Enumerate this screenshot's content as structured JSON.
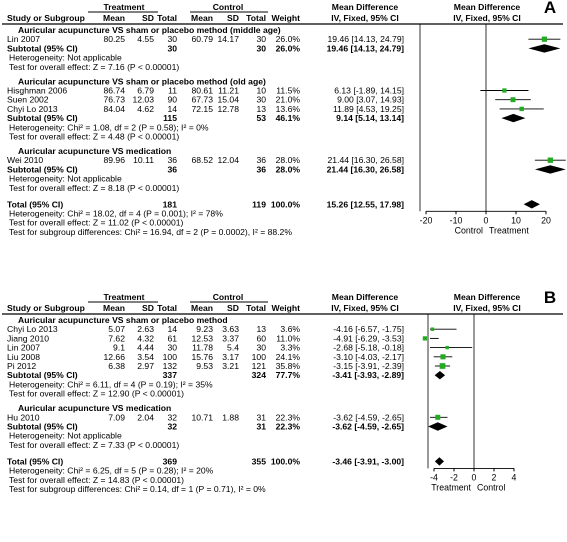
{
  "chart_data": [
    {
      "type": "forest",
      "panel_label": "A",
      "headers": {
        "study": "Study or Subgroup",
        "group1": "Treatment",
        "group2": "Control",
        "mean": "Mean",
        "sd": "SD",
        "total": "Total",
        "weight": "Weight",
        "md": "Mean Difference",
        "md_sub": "IV, Fixed, 95% CI"
      },
      "xlim": [
        -20,
        20
      ],
      "ticks": [
        "-20",
        "-10",
        "0",
        "10",
        "20"
      ],
      "tick_values": [
        -20,
        -10,
        0,
        10,
        20
      ],
      "favours_left": "Control",
      "favours_right": "Treatment",
      "subgroups": [
        {
          "title": "Auricular acupuncture VS sham or placebo method (middle age)",
          "studies": [
            {
              "name": "Lin 2007",
              "t_mean": "80.25",
              "t_sd": "4.55",
              "t_n": "30",
              "c_mean": "60.79",
              "c_sd": "14.17",
              "c_n": "30",
              "weight": "26.0%",
              "ci": "19.46 [14.13, 24.79]",
              "md": 19.46,
              "lo": 14.13,
              "hi": 24.79
            }
          ],
          "subtotal": {
            "label": "Subtotal (95% CI)",
            "t_n": "30",
            "c_n": "30",
            "weight": "26.0%",
            "ci": "19.46 [14.13, 24.79]",
            "md": 19.46,
            "lo": 14.13,
            "hi": 24.79
          },
          "notes": [
            "Heterogeneity: Not applicable",
            "Test for overall effect: Z = 7.16 (P < 0.00001)"
          ]
        },
        {
          "title": "Auricular acupuncture VS sham or placebo method (old age)",
          "studies": [
            {
              "name": "Hisghman 2006",
              "t_mean": "86.74",
              "t_sd": "6.79",
              "t_n": "11",
              "c_mean": "80.61",
              "c_sd": "11.21",
              "c_n": "10",
              "weight": "11.5%",
              "ci": "6.13 [-1.89, 14.15]",
              "md": 6.13,
              "lo": -1.89,
              "hi": 14.15
            },
            {
              "name": "Suen 2002",
              "t_mean": "76.73",
              "t_sd": "12.03",
              "t_n": "90",
              "c_mean": "67.73",
              "c_sd": "15.04",
              "c_n": "30",
              "weight": "21.0%",
              "ci": "9.00 [3.07, 14.93]",
              "md": 9.0,
              "lo": 3.07,
              "hi": 14.93
            },
            {
              "name": "Chyi Lo 2013",
              "t_mean": "84.04",
              "t_sd": "4.62",
              "t_n": "14",
              "c_mean": "72.15",
              "c_sd": "12.78",
              "c_n": "13",
              "weight": "13.6%",
              "ci": "11.89 [4.53, 19.25]",
              "md": 11.89,
              "lo": 4.53,
              "hi": 19.25
            }
          ],
          "subtotal": {
            "label": "Subtotal (95% CI)",
            "t_n": "115",
            "c_n": "53",
            "weight": "46.1%",
            "ci": "9.14 [5.14, 13.14]",
            "md": 9.14,
            "lo": 5.14,
            "hi": 13.14
          },
          "notes": [
            "Heterogeneity: Chi² = 1.08, df = 2 (P = 0.58); I² = 0%",
            "Test for overall effect: Z = 4.48 (P < 0.00001)"
          ]
        },
        {
          "title": "Auricular acupuncture VS medication",
          "studies": [
            {
              "name": "Wei 2010",
              "t_mean": "89.96",
              "t_sd": "10.11",
              "t_n": "36",
              "c_mean": "68.52",
              "c_sd": "12.04",
              "c_n": "36",
              "weight": "28.0%",
              "ci": "21.44 [16.30, 26.58]",
              "md": 21.44,
              "lo": 16.3,
              "hi": 26.58
            }
          ],
          "subtotal": {
            "label": "Subtotal (95% CI)",
            "t_n": "36",
            "c_n": "36",
            "weight": "28.0%",
            "ci": "21.44 [16.30, 26.58]",
            "md": 21.44,
            "lo": 16.3,
            "hi": 26.58
          },
          "notes": [
            "Heterogeneity: Not applicable",
            "Test for overall effect: Z = 8.18 (P < 0.00001)"
          ]
        }
      ],
      "total": {
        "label": "Total (95% CI)",
        "t_n": "181",
        "c_n": "119",
        "weight": "100.0%",
        "ci": "15.26 [12.55, 17.98]",
        "md": 15.26,
        "lo": 12.55,
        "hi": 17.98
      },
      "footer": [
        "Heterogeneity: Chi² = 18.02, df = 4 (P = 0.001); I² = 78%",
        "Test for overall effect: Z = 11.02 (P < 0.00001)",
        "Test for subgroup differences: Chi² = 16.94, df = 2 (P = 0.0002), I² = 88.2%"
      ]
    },
    {
      "type": "forest",
      "panel_label": "B",
      "headers": {
        "study": "Study or Subgroup",
        "group1": "Treatment",
        "group2": "Control",
        "mean": "Mean",
        "sd": "SD",
        "total": "Total",
        "weight": "Weight",
        "md": "Mean Difference",
        "md_sub": "IV, Fixed, 95% CI"
      },
      "xlim": [
        -4,
        4
      ],
      "ticks": [
        "-4",
        "-2",
        "0",
        "2",
        "4"
      ],
      "tick_values": [
        -4,
        -2,
        0,
        2,
        4
      ],
      "favours_left": "Treatment",
      "favours_right": "Control",
      "subgroups": [
        {
          "title": "Auricular acupuncture VS sham or placebo method",
          "studies": [
            {
              "name": "Chyi Lo 2013",
              "t_mean": "5.07",
              "t_sd": "2.63",
              "t_n": "14",
              "c_mean": "9.23",
              "c_sd": "3.63",
              "c_n": "13",
              "weight": "3.6%",
              "ci": "-4.16 [-6.57, -1.75]",
              "md": -4.16,
              "lo": -6.57,
              "hi": -1.75
            },
            {
              "name": "Jiang 2010",
              "t_mean": "7.62",
              "t_sd": "4.32",
              "t_n": "61",
              "c_mean": "12.53",
              "c_sd": "3.37",
              "c_n": "60",
              "weight": "11.0%",
              "ci": "-4.91 [-6.29, -3.53]",
              "md": -4.91,
              "lo": -6.29,
              "hi": -3.53
            },
            {
              "name": "Lin 2007",
              "t_mean": "9.1",
              "t_sd": "4.44",
              "t_n": "30",
              "c_mean": "11.78",
              "c_sd": "5.4",
              "c_n": "30",
              "weight": "3.3%",
              "ci": "-2.68 [-5.18, -0.18]",
              "md": -2.68,
              "lo": -5.18,
              "hi": -0.18
            },
            {
              "name": "Liu 2008",
              "t_mean": "12.66",
              "t_sd": "3.54",
              "t_n": "100",
              "c_mean": "15.76",
              "c_sd": "3.17",
              "c_n": "100",
              "weight": "24.1%",
              "ci": "-3.10 [-4.03, -2.17]",
              "md": -3.1,
              "lo": -4.03,
              "hi": -2.17
            },
            {
              "name": "Pi 2012",
              "t_mean": "6.38",
              "t_sd": "2.97",
              "t_n": "132",
              "c_mean": "9.53",
              "c_sd": "3.21",
              "c_n": "121",
              "weight": "35.8%",
              "ci": "-3.15 [-3.91, -2.39]",
              "md": -3.15,
              "lo": -3.91,
              "hi": -2.39
            }
          ],
          "subtotal": {
            "label": "Subtotal (95% CI)",
            "t_n": "337",
            "c_n": "324",
            "weight": "77.7%",
            "ci": "-3.41 [-3.93, -2.89]",
            "md": -3.41,
            "lo": -3.93,
            "hi": -2.89
          },
          "notes": [
            "Heterogeneity: Chi² = 6.11, df = 4 (P = 0.19); I² = 35%",
            "Test for overall effect: Z = 12.90 (P < 0.00001)"
          ]
        },
        {
          "title": "Auricular acupuncture VS medication",
          "studies": [
            {
              "name": "Hu 2010",
              "t_mean": "7.09",
              "t_sd": "2.04",
              "t_n": "32",
              "c_mean": "10.71",
              "c_sd": "1.88",
              "c_n": "31",
              "weight": "22.3%",
              "ci": "-3.62 [-4.59, -2.65]",
              "md": -3.62,
              "lo": -4.59,
              "hi": -2.65
            }
          ],
          "subtotal": {
            "label": "Subtotal (95% CI)",
            "t_n": "32",
            "c_n": "31",
            "weight": "22.3%",
            "ci": "-3.62 [-4.59, -2.65]",
            "md": -3.62,
            "lo": -4.59,
            "hi": -2.65
          },
          "notes": [
            "Heterogeneity: Not applicable",
            "Test for overall effect: Z = 7.33 (P < 0.00001)"
          ]
        }
      ],
      "total": {
        "label": "Total (95% CI)",
        "t_n": "369",
        "c_n": "355",
        "weight": "100.0%",
        "ci": "-3.46 [-3.91, -3.00]",
        "md": -3.46,
        "lo": -3.91,
        "hi": -3.0
      },
      "footer": [
        "Heterogeneity: Chi² = 6.25, df = 5 (P = 0.28); I² = 20%",
        "Test for overall effect: Z = 14.83 (P < 0.00001)",
        "Test for subgroup differences: Chi² = 0.14, df = 1 (P = 0.71), I² = 0%"
      ]
    }
  ],
  "colors": {
    "square": "#22aa22",
    "diamond": "#000000",
    "rule": "#000000",
    "header_text": "#000000"
  }
}
